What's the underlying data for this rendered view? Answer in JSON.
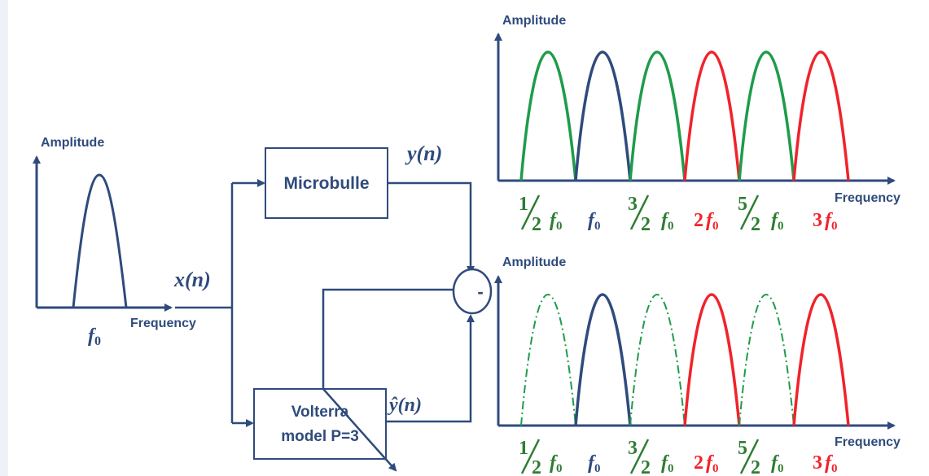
{
  "input_plot": {
    "y_label": "Amplitude",
    "x_label": "Frequency",
    "peak_label": "f",
    "peak_sub": "0"
  },
  "signals": {
    "input": "x(n)",
    "output": "y(n)",
    "estimate": "ŷ(n)"
  },
  "blocks": {
    "system": "Microbulle",
    "model_line1": "Volterra",
    "model_line2": "model P=3",
    "subtractor": "-"
  },
  "top_plot": {
    "y_label": "Amplitude",
    "x_label": "Frequency"
  },
  "bottom_plot": {
    "y_label": "Amplitude",
    "x_label": "Frequency"
  },
  "harmonics": {
    "h_half": {
      "num": "1",
      "den": "2",
      "sym": "f",
      "sub": "0"
    },
    "h_one": {
      "sym": "f",
      "sub": "0"
    },
    "h_three_half": {
      "num": "3",
      "den": "2",
      "sym": "f",
      "sub": "0"
    },
    "h_two": {
      "coef": "2",
      "sym": "f",
      "sub": "0"
    },
    "h_five_half": {
      "num": "5",
      "den": "2",
      "sym": "f",
      "sub": "0"
    },
    "h_three": {
      "coef": "3",
      "sym": "f",
      "sub": "0"
    }
  },
  "colors": {
    "navy": "#2f4b7c",
    "green": "#1e9c4a",
    "red": "#f0232b",
    "tick_green": "#2e7d32"
  }
}
